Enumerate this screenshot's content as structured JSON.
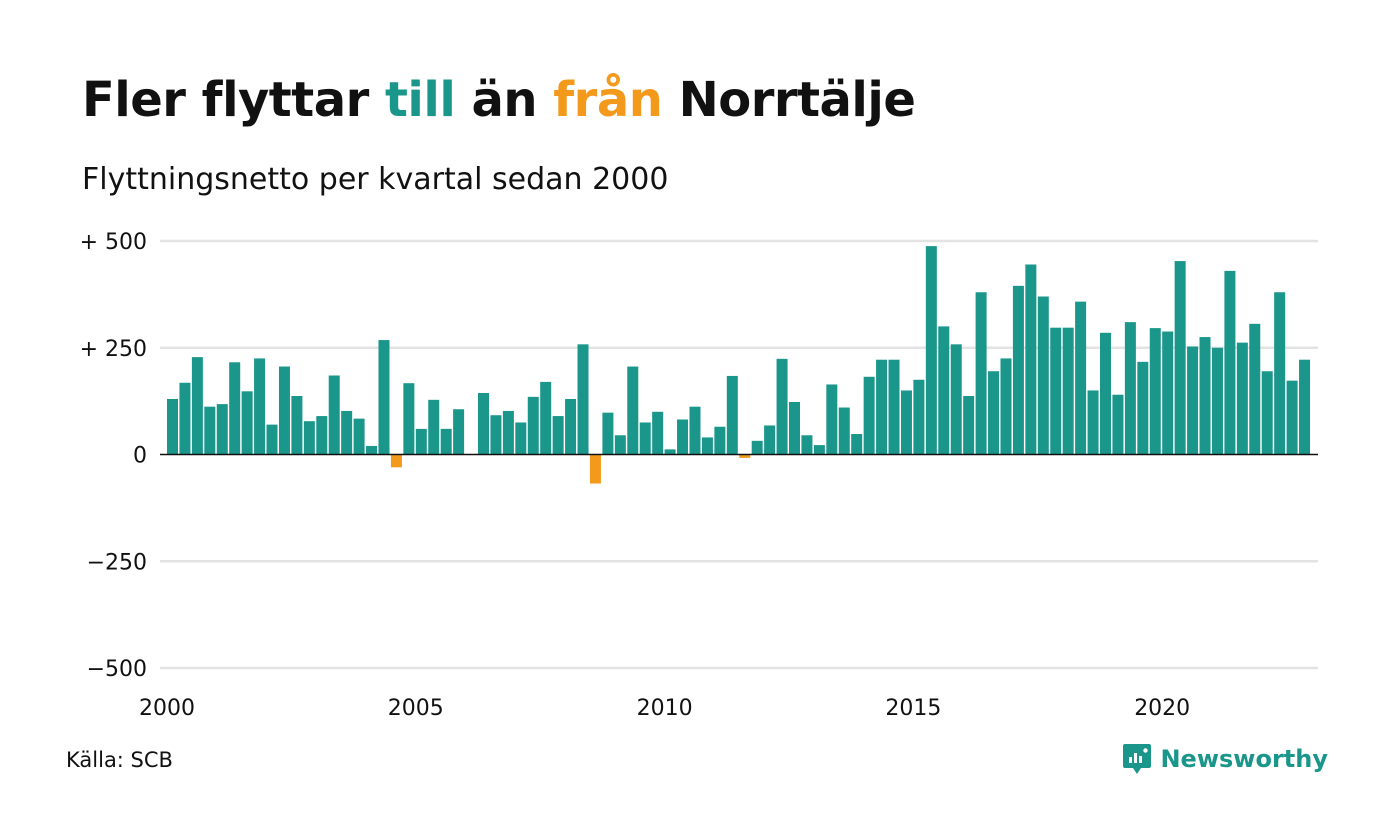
{
  "header": {
    "title_parts": [
      "Fler flyttar ",
      "till",
      " än ",
      "från",
      " Norrtälje"
    ],
    "subtitle": "Flyttningsnetto per kvartal sedan 2000"
  },
  "colors": {
    "positive": "#1a968a",
    "negative": "#f39a1c",
    "grid": "#e3e3e3",
    "zero_line": "#111111"
  },
  "footer": {
    "source": "Källa: SCB",
    "brand": "Newsworthy",
    "brand_icon": "newsworthy-logo-icon"
  },
  "chart_data": {
    "type": "bar",
    "title": "Fler flyttar till än från Norrtälje",
    "subtitle": "Flyttningsnetto per kvartal sedan 2000",
    "ylim": [
      -500,
      500
    ],
    "y_ticks": [
      500,
      250,
      0,
      -250,
      -500
    ],
    "y_tick_labels": [
      "+ 500",
      "+ 250",
      "0",
      "−250",
      "−500"
    ],
    "x_tick_labels": [
      "2000",
      "2005",
      "2010",
      "2015",
      "2020"
    ],
    "grid": true,
    "start_year": 2000,
    "values": [
      130,
      168,
      228,
      112,
      118,
      216,
      148,
      225,
      70,
      206,
      137,
      78,
      90,
      185,
      102,
      84,
      20,
      268,
      -30,
      167,
      60,
      128,
      60,
      106,
      0,
      144,
      92,
      102,
      75,
      135,
      170,
      90,
      130,
      258,
      -68,
      98,
      45,
      206,
      75,
      100,
      12,
      82,
      112,
      40,
      65,
      184,
      -8,
      32,
      68,
      224,
      123,
      45,
      22,
      164,
      110,
      48,
      182,
      222,
      222,
      150,
      175,
      488,
      300,
      258,
      137,
      380,
      195,
      225,
      395,
      445,
      370,
      297,
      297,
      358,
      150,
      285,
      140,
      310,
      217,
      296,
      288,
      453,
      253,
      275,
      250,
      430,
      262,
      306,
      195,
      380,
      173,
      222
    ]
  }
}
